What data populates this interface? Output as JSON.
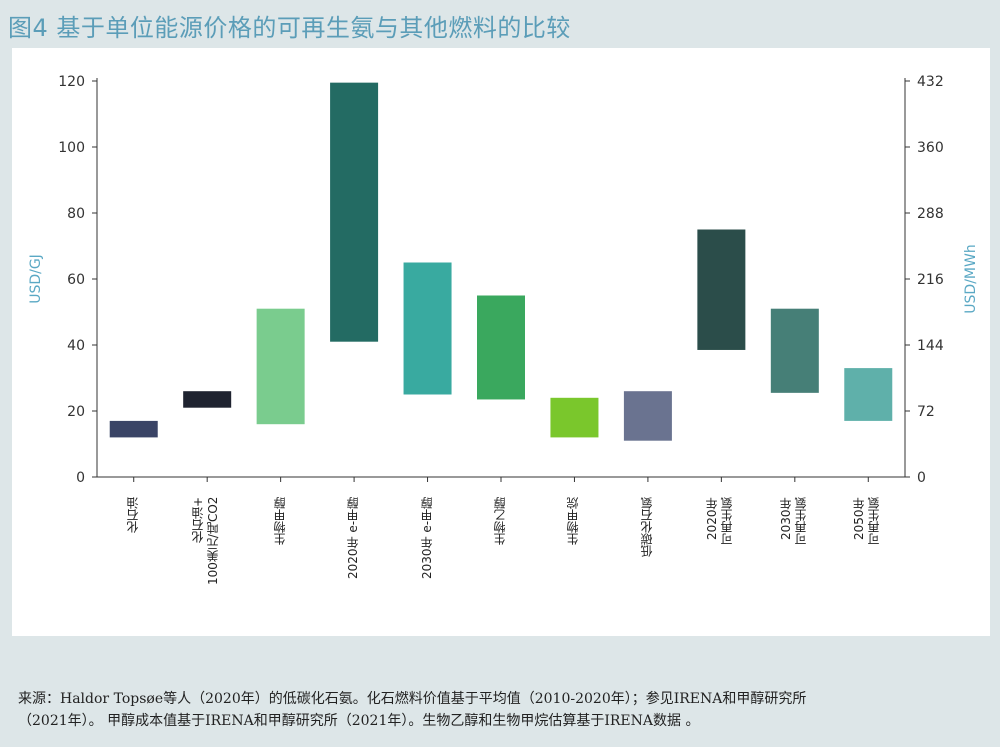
{
  "title": "图4 基于单位能源价格的可再生氨与其他燃料的比较",
  "footer": {
    "line1": "来源：Haldor Topsøe等人（2020年）的低碳化石氨。化石燃料价值基于平均值（2010-2020年）；参见IRENA和甲醇研究所",
    "line2": "（2021年）。  甲醇成本值基于IRENA和甲醇研究所（2021年）。生物乙醇和生物甲烷估算基于IRENA数据 。"
  },
  "chart_data": {
    "type": "bar",
    "subtype": "floating-range",
    "ylabel": "USD/GJ",
    "ylabel_right": "USD/MWh",
    "ylim": [
      0,
      120
    ],
    "ylim_right": [
      0,
      432
    ],
    "yticks": [
      0,
      20,
      40,
      60,
      80,
      100,
      120
    ],
    "yticks_right": [
      0,
      72,
      144,
      216,
      288,
      360,
      432
    ],
    "grid": false,
    "categories": [
      [
        "化石油"
      ],
      [
        "化石油+",
        "100美元/吨CO2"
      ],
      [
        "生物甲醇"
      ],
      [
        "2020年 e-甲醇"
      ],
      [
        "2030年 e-甲醇"
      ],
      [
        "生物乙醇"
      ],
      [
        "生物甲烷"
      ],
      [
        "低碳化石氨"
      ],
      [
        "2020年",
        "可再生氨"
      ],
      [
        "2030年",
        "可再生氨"
      ],
      [
        "2050年",
        "可再生氨"
      ]
    ],
    "ranges": [
      [
        12,
        17
      ],
      [
        21,
        26
      ],
      [
        16,
        51
      ],
      [
        41,
        119.5
      ],
      [
        25,
        65
      ],
      [
        23.5,
        55
      ],
      [
        12,
        24
      ],
      [
        11,
        26
      ],
      [
        38.5,
        75
      ],
      [
        25.5,
        51
      ],
      [
        17,
        33
      ]
    ],
    "colors": [
      "#3a4466",
      "#1f2330",
      "#7acc8e",
      "#236b63",
      "#39aaa0",
      "#3aa85e",
      "#7ac72c",
      "#6a7390",
      "#2b4d4a",
      "#467f77",
      "#5fb0aa"
    ]
  }
}
